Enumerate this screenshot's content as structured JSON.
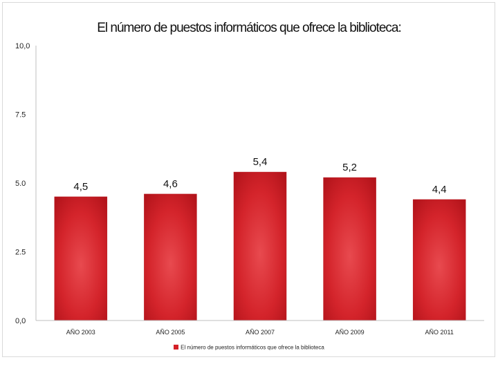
{
  "chart_data": {
    "type": "bar",
    "title": "El número de puestos informáticos que ofrece la biblioteca:",
    "categories": [
      "AÑO 2003",
      "AÑO 2005",
      "AÑO 2007",
      "AÑO 2009",
      "AÑO 2011"
    ],
    "values": [
      4.5,
      4.6,
      5.4,
      5.2,
      4.4
    ],
    "value_labels": [
      "4,5",
      "4,6",
      "5,4",
      "5,2",
      "4,4"
    ],
    "series_name": "El número de puestos informáticos que ofrece la biblioteca",
    "yticks": [
      {
        "value": 0,
        "label": "0,0"
      },
      {
        "value": 2.5,
        "label": "2.5"
      },
      {
        "value": 5,
        "label": "5.0"
      },
      {
        "value": 7.5,
        "label": "7.5"
      },
      {
        "value": 10,
        "label": "10,0"
      }
    ],
    "ylim": [
      0,
      10
    ],
    "xlabel": "",
    "ylabel": "",
    "legend_position": "bottom",
    "bar_color": "#d42027"
  }
}
